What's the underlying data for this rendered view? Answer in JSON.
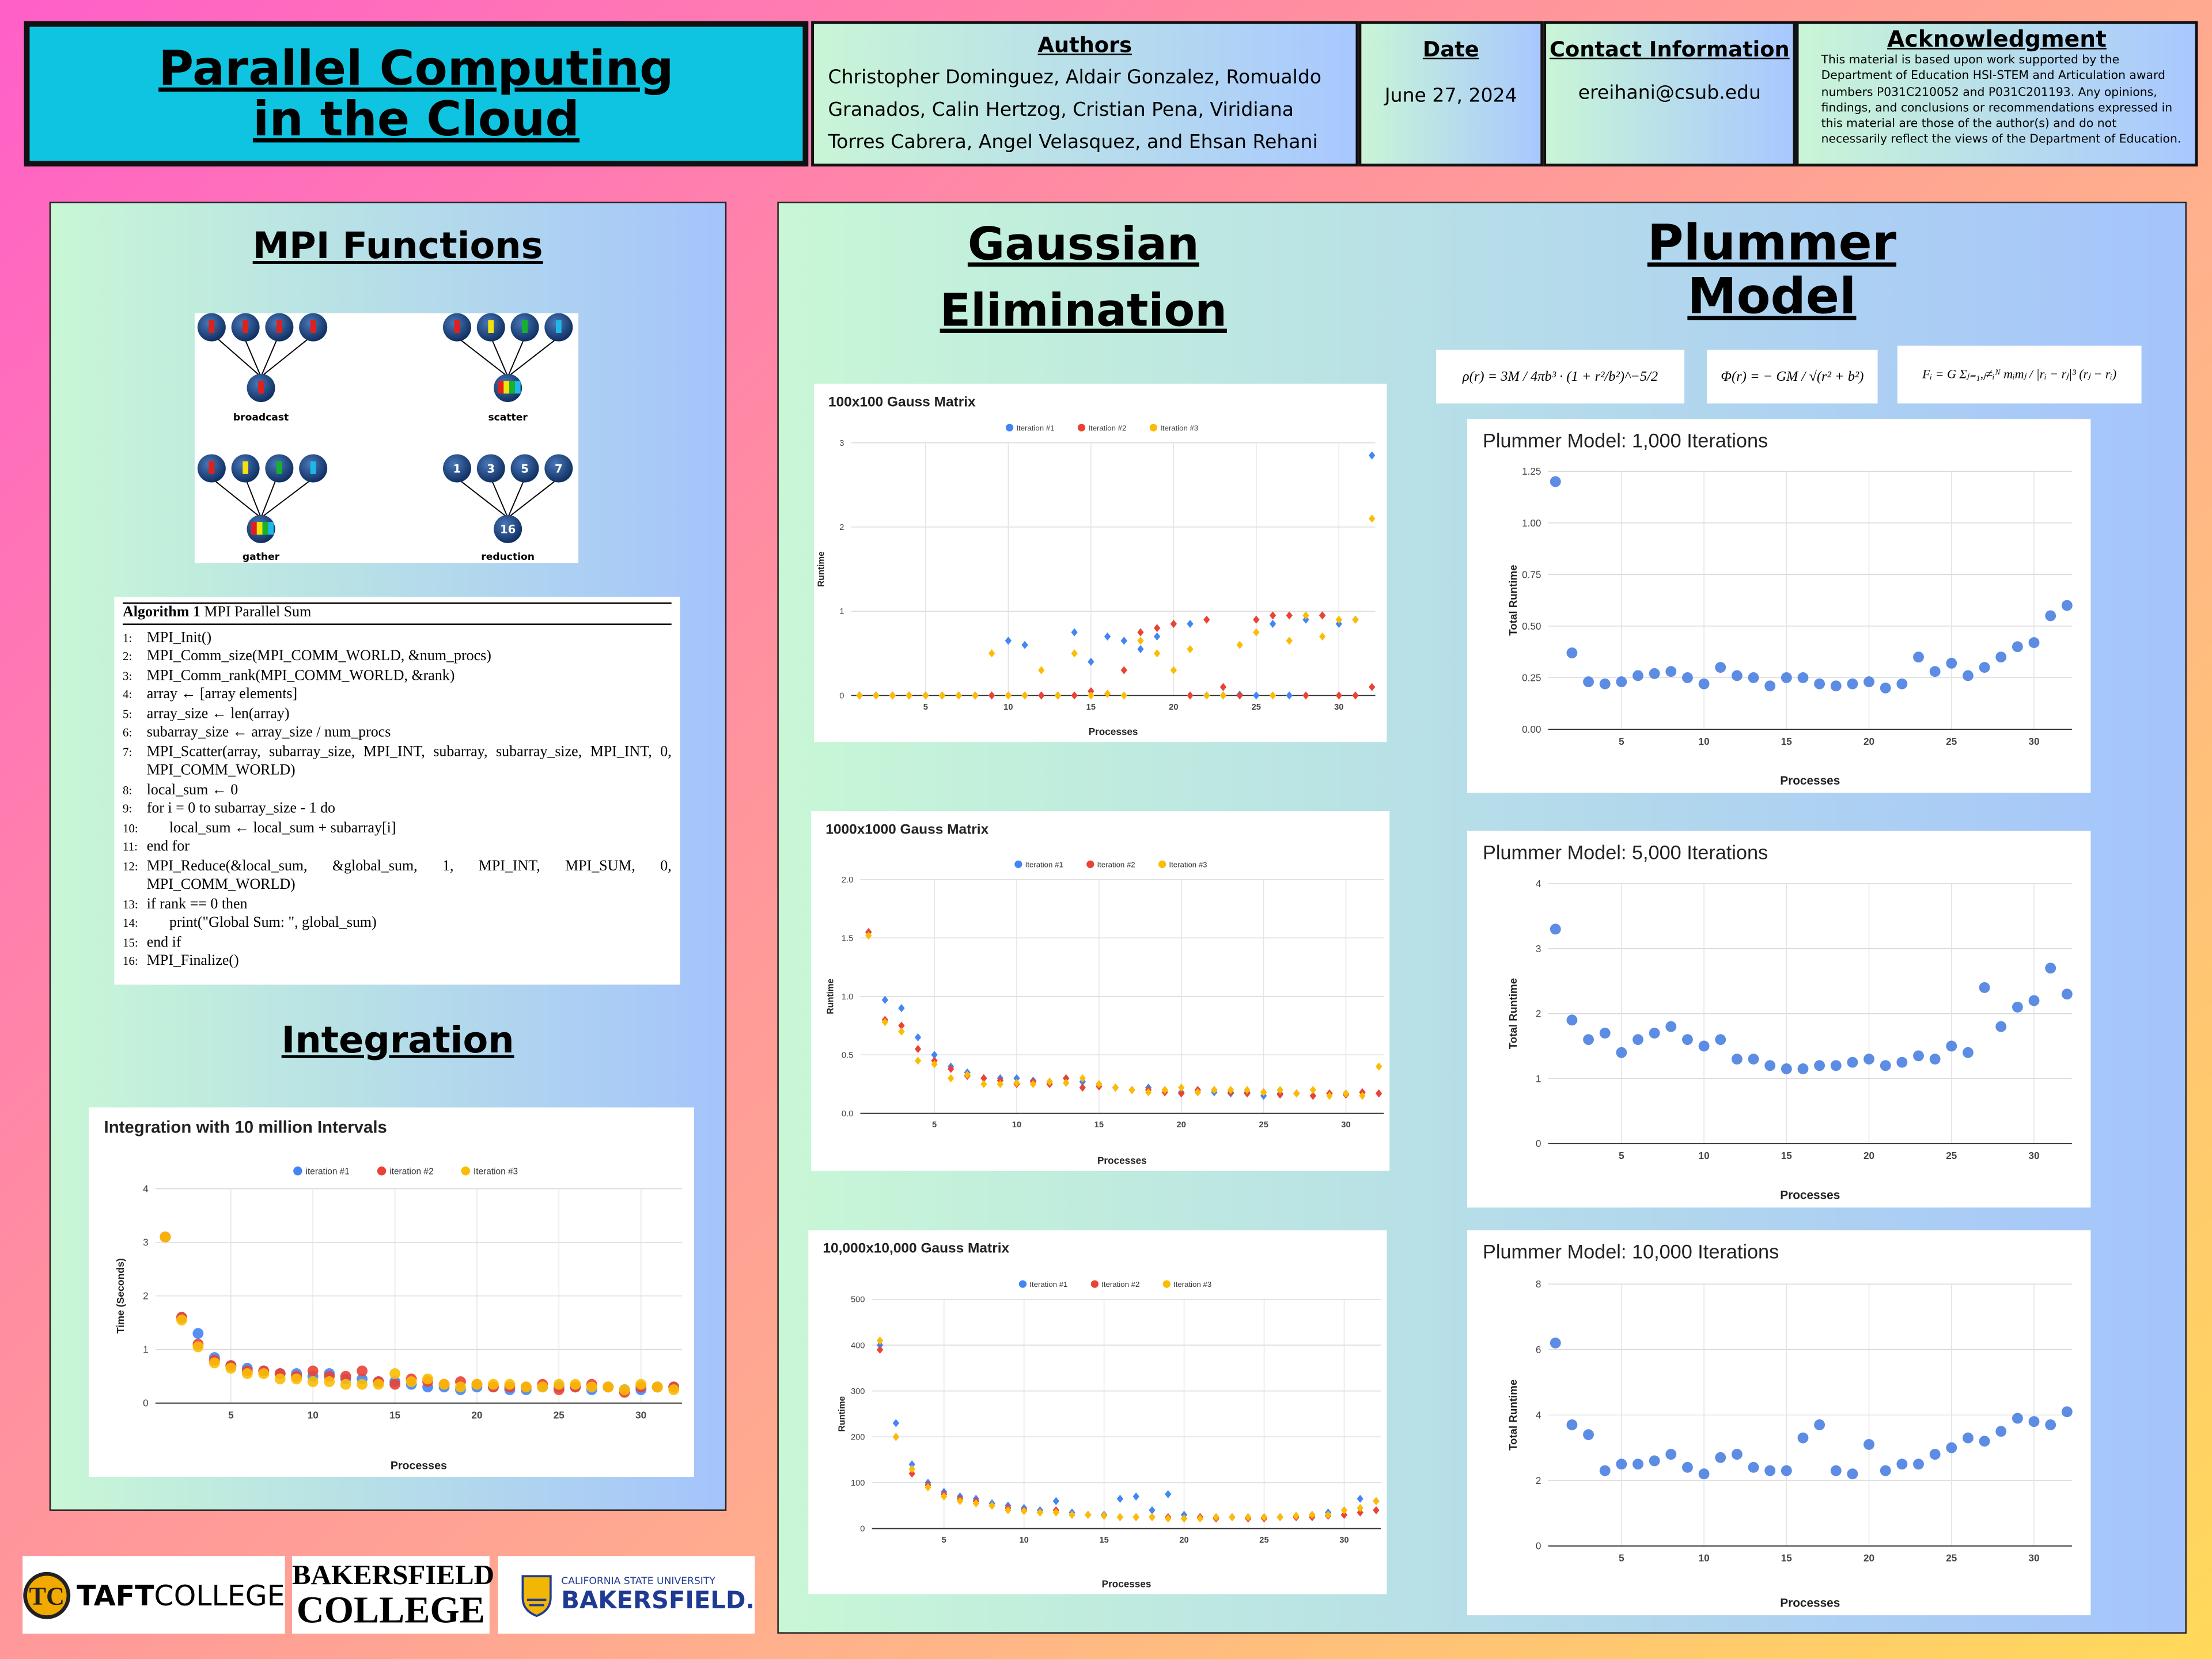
{
  "header": {
    "title": "Parallel Computing in the Cloud",
    "authors_heading": "Authors",
    "authors": "Christopher Dominguez, Aldair Gonzalez, Romualdo Granados, Calin Hertzog, Cristian Pena, Viridiana Torres Cabrera, Angel Velasquez, and Ehsan Rehani",
    "date_heading": "Date",
    "date": "June 27, 2024",
    "contact_heading": "Contact Information",
    "contact": "ereihani@csub.edu",
    "acknowledgment_heading": "Acknowledgment",
    "acknowledgment": "This material is based upon work supported by the Department of Education HSI-STEM and Articulation award numbers P031C210052 and P031C201193. Any opinions, findings, and conclusions or recommendations expressed in this material are those of the author(s) and do not necessarily reflect the views of the Department of Education."
  },
  "mpi": {
    "title": "MPI Functions",
    "labels": [
      "broadcast",
      "scatter",
      "gather",
      "reduction"
    ],
    "reduction_inputs": [
      "1",
      "3",
      "5",
      "7"
    ],
    "reduction_output": "16"
  },
  "algorithm": {
    "label": "Algorithm 1",
    "name": "MPI Parallel Sum",
    "lines": [
      {
        "n": "1:",
        "text": "MPI_Init()"
      },
      {
        "n": "2:",
        "text": "MPI_Comm_size(MPI_COMM_WORLD, &num_procs)"
      },
      {
        "n": "3:",
        "text": "MPI_Comm_rank(MPI_COMM_WORLD, &rank)"
      },
      {
        "n": "4:",
        "text": "array ← [array elements]"
      },
      {
        "n": "5:",
        "text": "array_size ← len(array)"
      },
      {
        "n": "6:",
        "text": "subarray_size ← array_size / num_procs"
      },
      {
        "n": "7:",
        "text": "MPI_Scatter(array, subarray_size, MPI_INT, subarray, subarray_size, MPI_INT, 0, MPI_COMM_WORLD)"
      },
      {
        "n": "8:",
        "text": "local_sum ← 0"
      },
      {
        "n": "9:",
        "text": "for i = 0 to subarray_size - 1 do"
      },
      {
        "n": "10:",
        "text": "local_sum ← local_sum + subarray[i]"
      },
      {
        "n": "11:",
        "text": "end for"
      },
      {
        "n": "12:",
        "text": "MPI_Reduce(&local_sum, &global_sum, 1, MPI_INT, MPI_SUM, 0, MPI_COMM_WORLD)"
      },
      {
        "n": "13:",
        "text": "if rank == 0 then"
      },
      {
        "n": "14:",
        "text": "print(\"Global Sum: \", global_sum)"
      },
      {
        "n": "15:",
        "text": "end if"
      },
      {
        "n": "16:",
        "text": "MPI_Finalize()"
      }
    ]
  },
  "integration_title": "Integration",
  "gaussian_title": "Gaussian Elimination",
  "plummer_title": "Plummer Model",
  "formulas": [
    "ρ(r) = 3M / 4πb³ · (1 + r²/b²)^−5/2",
    "Φ(r) = − GM / √(r² + b²)",
    "Fᵢ = G Σⱼ₌₁,ⱼ≠ᵢᴺ mᵢmⱼ / |rᵢ − rⱼ|³ (rⱼ − rᵢ)"
  ],
  "logos": {
    "taft": [
      "TAFT",
      "COLLEGE"
    ],
    "bakersfield_college": [
      "BAKERSFIELD",
      "COLLEGE"
    ],
    "csub": [
      "CALIFORNIA STATE UNIVERSITY",
      "BAKERSFIELD."
    ]
  },
  "chart_data": [
    {
      "type": "scatter",
      "title": "Integration with 10 million Intervals",
      "marker": "circle",
      "grid": true,
      "x_label": "Processes",
      "y_label": "Time (Seconds)",
      "x": [
        1,
        2,
        3,
        4,
        5,
        6,
        7,
        8,
        9,
        10,
        11,
        12,
        13,
        14,
        15,
        16,
        17,
        18,
        19,
        20,
        21,
        22,
        23,
        24,
        25,
        26,
        27,
        28,
        29,
        30,
        31,
        32
      ],
      "xlim": [
        0.4,
        32.5
      ],
      "xticks": [
        5,
        10,
        15,
        20,
        25,
        30
      ],
      "ylim": [
        0,
        4
      ],
      "yticks": [
        0,
        1,
        2,
        3,
        4
      ],
      "series": [
        {
          "name": "iteration #1",
          "color": "#4285f4",
          "values": [
            3.1,
            1.6,
            1.3,
            0.85,
            0.7,
            0.65,
            0.6,
            0.55,
            0.55,
            0.5,
            0.55,
            0.45,
            0.45,
            0.4,
            0.4,
            0.35,
            0.3,
            0.3,
            0.25,
            0.3,
            0.3,
            0.25,
            0.25,
            0.3,
            0.3,
            0.3,
            0.25,
            0.3,
            0.25,
            0.25,
            0.3,
            0.3
          ]
        },
        {
          "name": "iteration #2",
          "color": "#ea4335",
          "values": [
            3.1,
            1.6,
            1.1,
            0.8,
            0.7,
            0.6,
            0.6,
            0.55,
            0.5,
            0.6,
            0.5,
            0.5,
            0.6,
            0.4,
            0.35,
            0.45,
            0.4,
            0.35,
            0.4,
            0.35,
            0.3,
            0.3,
            0.3,
            0.35,
            0.25,
            0.3,
            0.35,
            0.3,
            0.2,
            0.3,
            0.3,
            0.3
          ]
        },
        {
          "name": "Iteration #3",
          "color": "#fbbc04",
          "values": [
            3.1,
            1.55,
            1.05,
            0.75,
            0.65,
            0.55,
            0.55,
            0.45,
            0.45,
            0.4,
            0.4,
            0.35,
            0.35,
            0.35,
            0.55,
            0.4,
            0.45,
            0.35,
            0.3,
            0.35,
            0.35,
            0.35,
            0.3,
            0.3,
            0.35,
            0.35,
            0.3,
            0.3,
            0.25,
            0.35,
            0.3,
            0.25
          ]
        }
      ]
    },
    {
      "type": "scatter",
      "title": "100x100 Gauss Matrix",
      "marker": "diamond",
      "grid": true,
      "x_label": "Processes",
      "y_label": "Runtime",
      "x": [
        1,
        2,
        3,
        4,
        5,
        6,
        7,
        8,
        9,
        10,
        11,
        12,
        13,
        14,
        15,
        16,
        17,
        18,
        19,
        20,
        21,
        22,
        23,
        24,
        25,
        26,
        27,
        28,
        29,
        30,
        31,
        32
      ],
      "xlim": [
        0.5,
        32.2
      ],
      "xticks": [
        5,
        10,
        15,
        20,
        25,
        30
      ],
      "ylim": [
        0,
        3
      ],
      "yticks": [
        0,
        1,
        2,
        3
      ],
      "series": [
        {
          "name": "Iteration #1",
          "color": "#4285f4",
          "values": [
            0,
            0,
            0,
            0,
            0,
            0,
            0,
            0,
            0,
            0.65,
            0.6,
            0,
            0,
            0.75,
            0.4,
            0.7,
            0.65,
            0.55,
            0.7,
            0.85,
            0.85,
            0,
            0,
            0.01,
            0,
            0.85,
            0,
            0.9,
            0.95,
            0.85,
            0.9,
            2.85
          ]
        },
        {
          "name": "Iteration #2",
          "color": "#ea4335",
          "values": [
            0,
            0,
            0,
            0,
            0,
            0,
            0,
            0,
            0,
            0,
            0,
            0,
            0,
            0,
            0.05,
            0.02,
            0.3,
            0.75,
            0.8,
            0.85,
            0,
            0.9,
            0.1,
            0,
            0.9,
            0.95,
            0.95,
            0,
            0.95,
            0,
            0,
            0.1
          ]
        },
        {
          "name": "Iteration #3",
          "color": "#fbbc04",
          "values": [
            0,
            0,
            0,
            0,
            0,
            0,
            0,
            0,
            0.5,
            0,
            0,
            0.3,
            0,
            0.5,
            0,
            0.02,
            0,
            0.65,
            0.5,
            0.3,
            0.55,
            0,
            0,
            0.6,
            0.75,
            0,
            0.65,
            0.95,
            0.7,
            0.9,
            0.9,
            2.1
          ]
        }
      ]
    },
    {
      "type": "scatter",
      "title": "1000x1000 Gauss Matrix",
      "marker": "diamond",
      "grid": true,
      "x_label": "Processes",
      "y_label": "Runtime",
      "x": [
        1,
        2,
        3,
        4,
        5,
        6,
        7,
        8,
        9,
        10,
        11,
        12,
        13,
        14,
        15,
        16,
        17,
        18,
        19,
        20,
        21,
        22,
        23,
        24,
        25,
        26,
        27,
        28,
        29,
        30,
        31,
        32
      ],
      "xlim": [
        0.5,
        32.3
      ],
      "xticks": [
        5,
        10,
        15,
        20,
        25,
        30
      ],
      "ylim": [
        0,
        2
      ],
      "yticks": [
        {
          "value": 0,
          "label": "0.0"
        },
        0.5,
        {
          "value": 1,
          "label": "1.0"
        },
        1.5,
        {
          "value": 2,
          "label": "2.0"
        }
      ],
      "series": [
        {
          "name": "Iteration #1",
          "color": "#4285f4",
          "values": [
            1.55,
            0.97,
            0.9,
            0.65,
            0.5,
            0.4,
            0.35,
            0.3,
            0.3,
            0.3,
            0.28,
            0.27,
            0.3,
            0.27,
            0.25,
            0.22,
            0.2,
            0.22,
            0.2,
            0.18,
            0.18,
            0.18,
            0.17,
            0.18,
            0.15,
            0.17,
            0.17,
            0.15,
            0.17,
            0.17,
            0.18,
            0.17
          ]
        },
        {
          "name": "Iteration #2",
          "color": "#ea4335",
          "values": [
            1.55,
            0.8,
            0.75,
            0.55,
            0.45,
            0.38,
            0.32,
            0.3,
            0.28,
            0.25,
            0.27,
            0.25,
            0.3,
            0.22,
            0.23,
            0.22,
            0.2,
            0.2,
            0.18,
            0.17,
            0.2,
            0.2,
            0.18,
            0.17,
            0.18,
            0.16,
            0.17,
            0.15,
            0.17,
            0.16,
            0.18,
            0.17
          ]
        },
        {
          "name": "Iteration #3",
          "color": "#fbbc04",
          "values": [
            1.52,
            0.78,
            0.7,
            0.45,
            0.42,
            0.3,
            0.33,
            0.25,
            0.25,
            0.26,
            0.25,
            0.27,
            0.26,
            0.3,
            0.25,
            0.22,
            0.2,
            0.18,
            0.2,
            0.22,
            0.18,
            0.2,
            0.2,
            0.2,
            0.18,
            0.2,
            0.17,
            0.2,
            0.15,
            0.17,
            0.15,
            0.4
          ]
        }
      ]
    },
    {
      "type": "scatter",
      "title": "10,000x10,000 Gauss Matrix",
      "marker": "diamond",
      "grid": true,
      "x_label": "Processes",
      "y_label": "Runtime",
      "x": [
        1,
        2,
        3,
        4,
        5,
        6,
        7,
        8,
        9,
        10,
        11,
        12,
        13,
        14,
        15,
        16,
        17,
        18,
        19,
        20,
        21,
        22,
        23,
        24,
        25,
        26,
        27,
        28,
        29,
        30,
        31,
        32
      ],
      "xlim": [
        0.5,
        32.3
      ],
      "xticks": [
        5,
        10,
        15,
        20,
        25,
        30
      ],
      "ylim": [
        0,
        500
      ],
      "yticks": [
        0,
        100,
        200,
        300,
        400,
        500
      ],
      "series": [
        {
          "name": "Iteration #1",
          "color": "#4285f4",
          "values": [
            400,
            230,
            140,
            100,
            80,
            70,
            65,
            55,
            50,
            45,
            40,
            60,
            35,
            30,
            30,
            65,
            70,
            40,
            75,
            30,
            25,
            25,
            25,
            25,
            25,
            25,
            25,
            30,
            35,
            30,
            65,
            60
          ]
        },
        {
          "name": "Iteration #2",
          "color": "#ea4335",
          "values": [
            390,
            200,
            120,
            95,
            75,
            65,
            60,
            50,
            45,
            40,
            35,
            40,
            30,
            30,
            28,
            25,
            25,
            25,
            25,
            22,
            25,
            22,
            25,
            22,
            22,
            25,
            25,
            25,
            28,
            30,
            35,
            40
          ]
        },
        {
          "name": "Iteration #3",
          "color": "#fbbc04",
          "values": [
            410,
            200,
            130,
            90,
            70,
            60,
            55,
            50,
            40,
            38,
            35,
            35,
            30,
            30,
            28,
            25,
            25,
            25,
            22,
            22,
            22,
            25,
            25,
            25,
            25,
            25,
            28,
            30,
            30,
            40,
            45,
            60
          ]
        }
      ]
    },
    {
      "type": "scatter",
      "title": "Plummer Model: 1,000 Iterations",
      "marker": "circle",
      "grid": true,
      "color": "#4a7fe0",
      "x_label": "Processes",
      "y_label": "Total Runtime",
      "x": [
        1,
        2,
        3,
        4,
        5,
        6,
        7,
        8,
        9,
        10,
        11,
        12,
        13,
        14,
        15,
        16,
        17,
        18,
        19,
        20,
        21,
        22,
        23,
        24,
        25,
        26,
        27,
        28,
        29,
        30,
        31,
        32
      ],
      "xlim": [
        0.56,
        32.3
      ],
      "xticks": [
        5,
        10,
        15,
        20,
        25,
        30
      ],
      "ylim": [
        0,
        1.25
      ],
      "yticks": [
        {
          "value": 0,
          "label": "0.00"
        },
        0.25,
        {
          "value": 0.5,
          "label": "0.50"
        },
        0.75,
        {
          "value": 1,
          "label": "1.00"
        },
        1.25
      ],
      "values": [
        1.2,
        0.37,
        0.23,
        0.22,
        0.23,
        0.26,
        0.27,
        0.28,
        0.25,
        0.22,
        0.3,
        0.26,
        0.25,
        0.21,
        0.25,
        0.25,
        0.22,
        0.21,
        0.22,
        0.23,
        0.2,
        0.22,
        0.35,
        0.28,
        0.32,
        0.26,
        0.3,
        0.35,
        0.4,
        0.42,
        0.55,
        0.6
      ]
    },
    {
      "type": "scatter",
      "title": "Plummer Model: 5,000 Iterations",
      "marker": "circle",
      "grid": true,
      "color": "#4a7fe0",
      "x_label": "Processes",
      "y_label": "Total Runtime",
      "x": [
        1,
        2,
        3,
        4,
        5,
        6,
        7,
        8,
        9,
        10,
        11,
        12,
        13,
        14,
        15,
        16,
        17,
        18,
        19,
        20,
        21,
        22,
        23,
        24,
        25,
        26,
        27,
        28,
        29,
        30,
        31,
        32
      ],
      "xlim": [
        0.56,
        32.3
      ],
      "xticks": [
        5,
        10,
        15,
        20,
        25,
        30
      ],
      "ylim": [
        0,
        4
      ],
      "yticks": [
        0,
        1,
        2,
        3,
        4
      ],
      "values": [
        3.3,
        1.9,
        1.6,
        1.7,
        1.4,
        1.6,
        1.7,
        1.8,
        1.6,
        1.5,
        1.6,
        1.3,
        1.3,
        1.2,
        1.15,
        1.15,
        1.2,
        1.2,
        1.25,
        1.3,
        1.2,
        1.25,
        1.35,
        1.3,
        1.5,
        1.4,
        2.4,
        1.8,
        2.1,
        2.2,
        2.7,
        2.3
      ]
    },
    {
      "type": "scatter",
      "title": "Plummer Model: 10,000 Iterations",
      "marker": "circle",
      "grid": true,
      "color": "#4a7fe0",
      "x_label": "Processes",
      "y_label": "Total Runtime",
      "x": [
        1,
        2,
        3,
        4,
        5,
        6,
        7,
        8,
        9,
        10,
        11,
        12,
        13,
        14,
        15,
        16,
        17,
        18,
        19,
        20,
        21,
        22,
        23,
        24,
        25,
        26,
        27,
        28,
        29,
        30,
        31,
        32
      ],
      "xlim": [
        0.56,
        32.3
      ],
      "xticks": [
        5,
        10,
        15,
        20,
        25,
        30
      ],
      "ylim": [
        0,
        8
      ],
      "yticks": [
        0,
        2,
        4,
        6,
        8
      ],
      "values": [
        6.2,
        3.7,
        3.4,
        2.3,
        2.5,
        2.5,
        2.6,
        2.8,
        2.4,
        2.2,
        2.7,
        2.8,
        2.4,
        2.3,
        2.3,
        3.3,
        3.7,
        2.3,
        2.2,
        3.1,
        2.3,
        2.5,
        2.5,
        2.8,
        3.0,
        3.3,
        3.2,
        3.5,
        3.9,
        3.8,
        3.7,
        4.1
      ]
    }
  ]
}
